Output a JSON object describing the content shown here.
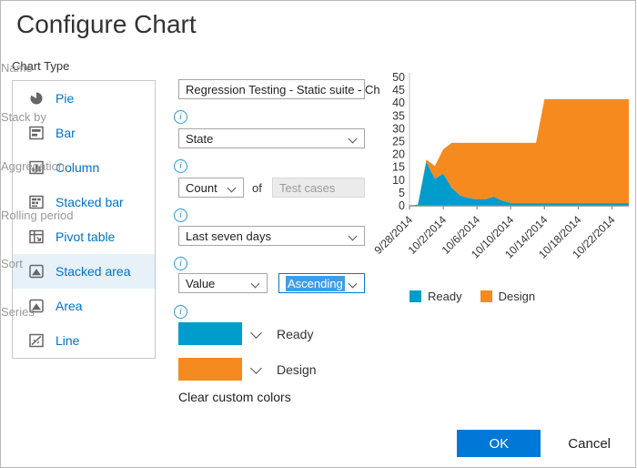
{
  "dialog": {
    "title": "Configure Chart"
  },
  "chart_type": {
    "label": "Chart Type",
    "items": [
      {
        "label": "Pie",
        "selected": false
      },
      {
        "label": "Bar",
        "selected": false
      },
      {
        "label": "Column",
        "selected": false
      },
      {
        "label": "Stacked bar",
        "selected": false
      },
      {
        "label": "Pivot table",
        "selected": false
      },
      {
        "label": "Stacked area",
        "selected": true
      },
      {
        "label": "Area",
        "selected": false
      },
      {
        "label": "Line",
        "selected": false
      }
    ]
  },
  "form": {
    "name": {
      "label": "Name",
      "value": "Regression Testing - Static suite - Ch"
    },
    "stack_by": {
      "label": "Stack by",
      "value": "State"
    },
    "aggregation": {
      "label": "Aggregation",
      "value": "Count",
      "of_label": "of",
      "field_value": "Test cases"
    },
    "rolling_period": {
      "label": "Rolling period",
      "value": "Last seven days"
    },
    "sort": {
      "label": "Sort",
      "field_value": "Value",
      "direction_value": "Ascending"
    },
    "series": {
      "label": "Series",
      "clear_label": "Clear custom colors"
    }
  },
  "footer": {
    "ok_label": "OK",
    "cancel_label": "Cancel"
  },
  "chart_data": {
    "type": "area",
    "stacked": true,
    "title": "",
    "xlabel": "",
    "ylabel": "",
    "ylim": [
      0,
      50
    ],
    "y_tick_step": 5,
    "x_tick_every": 4,
    "grid": false,
    "legend_position": "bottom",
    "x": [
      "9/28/2014",
      "9/29/2014",
      "9/30/2014",
      "10/1/2014",
      "10/2/2014",
      "10/3/2014",
      "10/4/2014",
      "10/5/2014",
      "10/6/2014",
      "10/7/2014",
      "10/8/2014",
      "10/9/2014",
      "10/10/2014",
      "10/11/2014",
      "10/12/2014",
      "10/13/2014",
      "10/14/2014",
      "10/15/2014",
      "10/16/2014",
      "10/17/2014",
      "10/18/2014",
      "10/19/2014",
      "10/20/2014",
      "10/21/2014",
      "10/22/2014",
      "10/23/2014",
      "10/24/2014"
    ],
    "series": [
      {
        "name": "Ready",
        "color": "#009CCC",
        "values": [
          0,
          0.5,
          17,
          10.5,
          12.5,
          7,
          4,
          3,
          2.5,
          2.5,
          3.5,
          2,
          1,
          1,
          1,
          1,
          1,
          1,
          1,
          1,
          1,
          1,
          1,
          1,
          1,
          1,
          1
        ]
      },
      {
        "name": "Design",
        "color": "#F58B1F",
        "values": [
          0,
          0,
          1,
          5,
          9.5,
          17.5,
          20.5,
          21.5,
          22,
          22,
          21,
          22.5,
          23.5,
          23.5,
          23.5,
          23.5,
          40.5,
          40.5,
          40.5,
          40.5,
          40.5,
          40.5,
          40.5,
          40.5,
          40.5,
          40.5,
          40.5
        ]
      }
    ]
  }
}
